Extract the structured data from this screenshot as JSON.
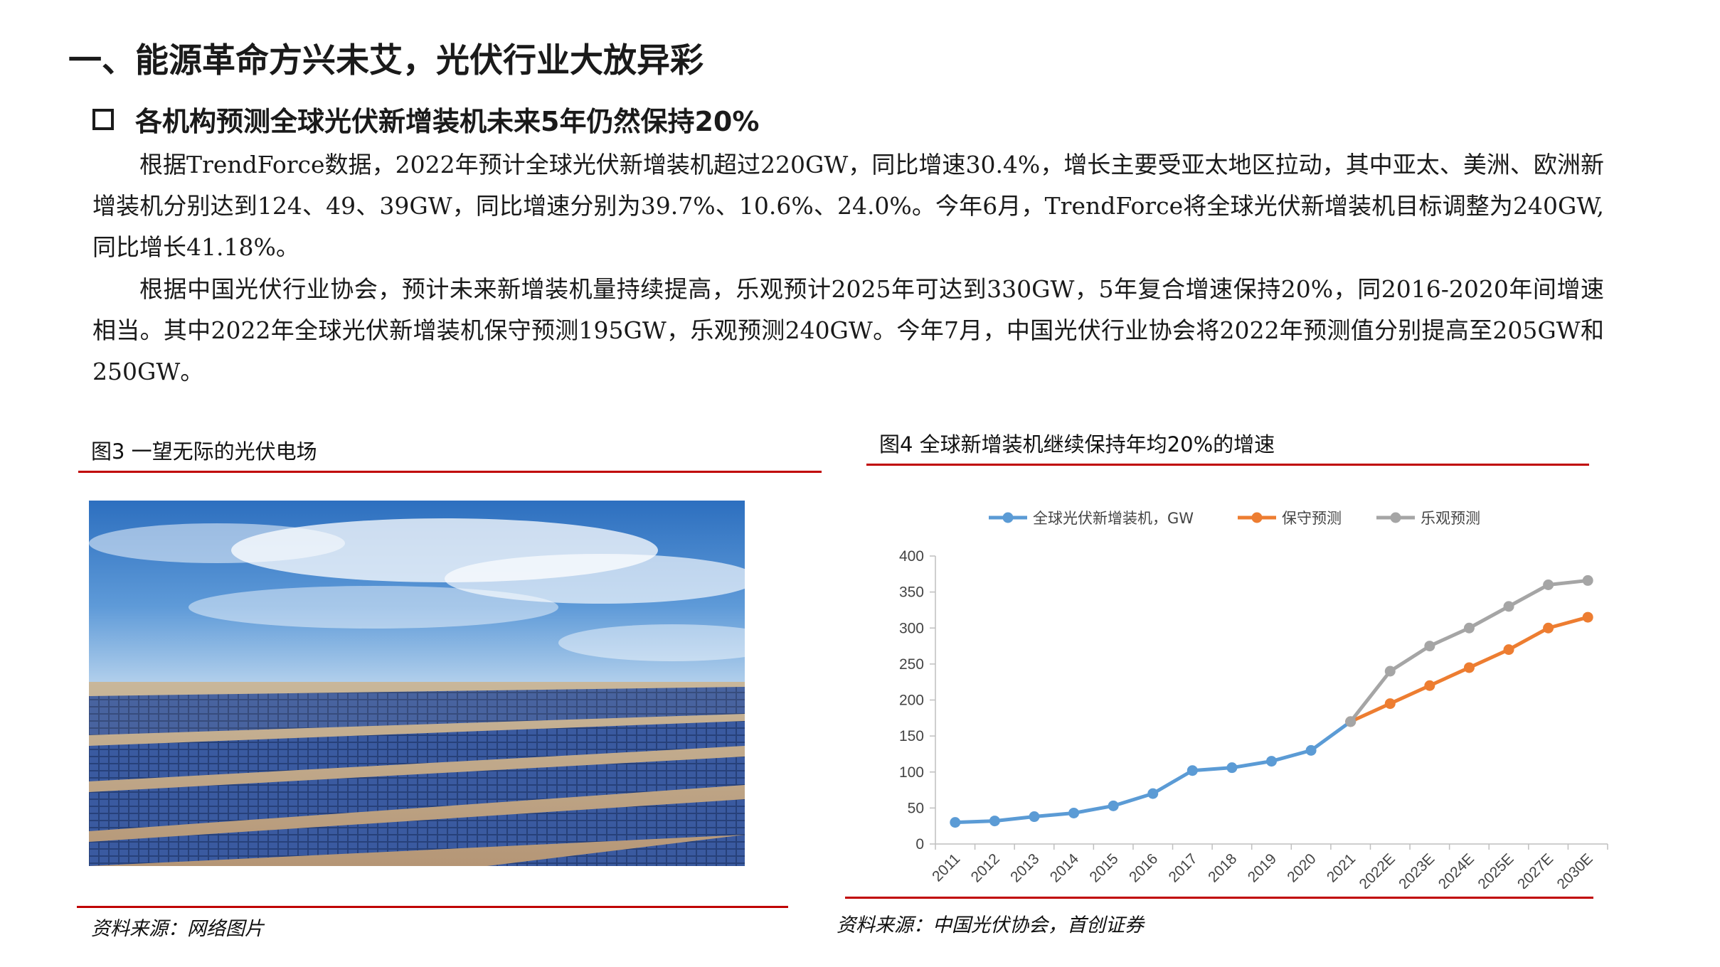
{
  "page": {
    "title": "一、能源革命方兴未艾，光伏行业大放异彩",
    "subtitle": "各机构预测全球光伏新增装机未来5年仍然保持20%",
    "paragraphs": [
      "根据TrendForce数据，2022年预计全球光伏新增装机超过220GW，同比增速30.4%，增长主要受亚太地区拉动，其中亚太、美洲、欧洲新增装机分别达到124、49、39GW，同比增速分别为39.7%、10.6%、24.0%。今年6月，TrendForce将全球光伏新增装机目标调整为240GW, 同比增长41.18%。",
      "根据中国光伏行业协会，预计未来新增装机量持续提高，乐观预计2025年可达到330GW，5年复合增速保持20%，同2016-2020年间增速相当。其中2022年全球光伏新增装机保守预测195GW，乐观预测240GW。今年7月，中国光伏行业协会将2022年预测值分别提高至205GW和250GW。"
    ]
  },
  "figure3": {
    "caption": "图3  一望无际的光伏电场",
    "source": "资料来源：网络图片"
  },
  "figure4": {
    "caption": "图4  全球新增装机继续保持年均20%的增速",
    "source": "资料来源：中国光伏协会，首创证券"
  },
  "chart_data": {
    "type": "line",
    "categories": [
      "2011",
      "2012",
      "2013",
      "2014",
      "2015",
      "2016",
      "2017",
      "2018",
      "2019",
      "2020",
      "2021",
      "2022E",
      "2023E",
      "2024E",
      "2025E",
      "2027E",
      "2030E"
    ],
    "ylim": [
      0,
      400
    ],
    "yticks": [
      0,
      50,
      100,
      150,
      200,
      250,
      300,
      350,
      400
    ],
    "grid": false,
    "legend_position": "top",
    "series": [
      {
        "name": "全球光伏新增装机，GW",
        "color": "#5b9bd5",
        "values": [
          30,
          32,
          38,
          43,
          53,
          70,
          102,
          106,
          115,
          130,
          170,
          null,
          null,
          null,
          null,
          null,
          null
        ]
      },
      {
        "name": "保守预测",
        "color": "#ed7d31",
        "values": [
          null,
          null,
          null,
          null,
          null,
          null,
          null,
          null,
          null,
          null,
          170,
          195,
          220,
          245,
          270,
          300,
          315
        ]
      },
      {
        "name": "乐观预测",
        "color": "#a5a5a5",
        "values": [
          null,
          null,
          null,
          null,
          null,
          null,
          null,
          null,
          null,
          null,
          170,
          240,
          275,
          300,
          330,
          360,
          366
        ]
      }
    ]
  }
}
